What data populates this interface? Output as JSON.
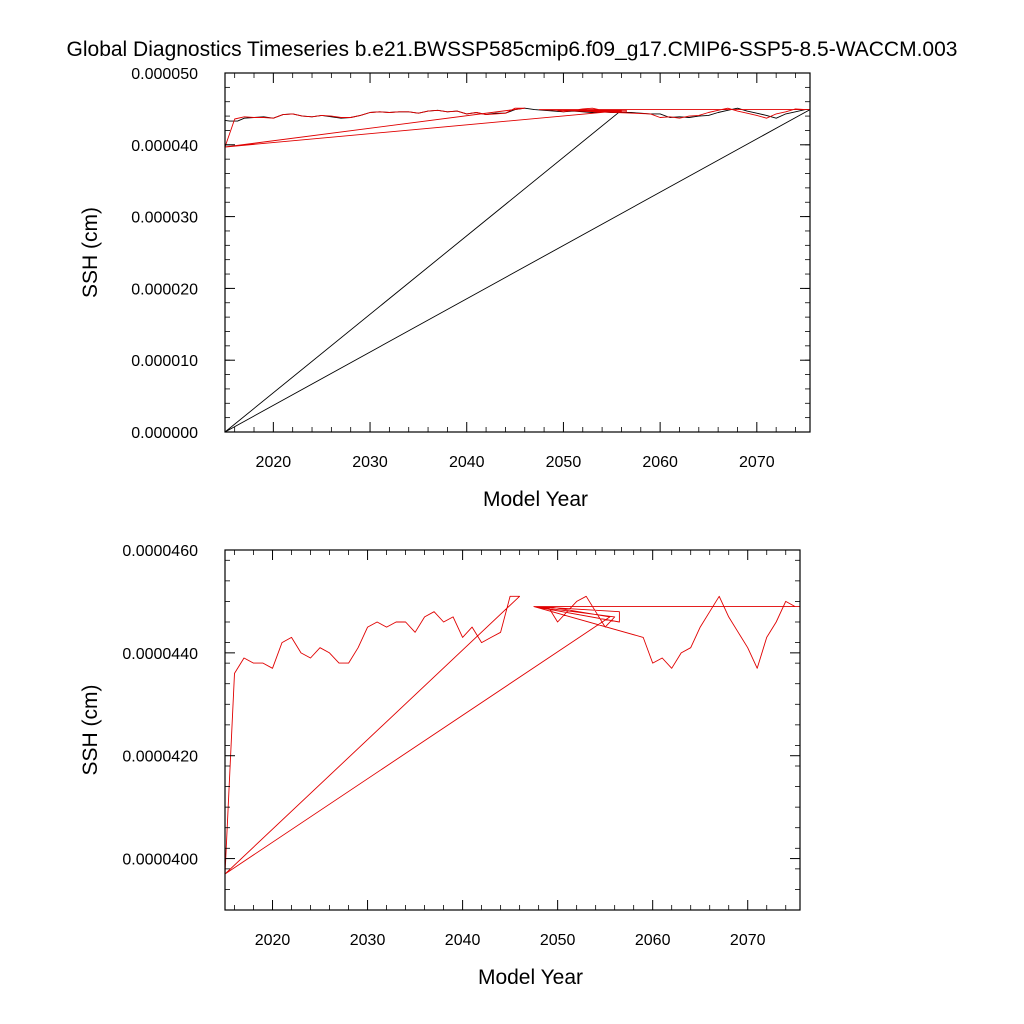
{
  "title": "Global Diagnostics Timeseries b.e21.BWSSP585cmip6.f09_g17.CMIP6-SSP5-8.5-WACCM.003",
  "colors": {
    "annual": "#e00000",
    "monthly": "#000000",
    "axis": "#000000"
  },
  "chart_data": [
    {
      "type": "line",
      "xlabel": "Model Year",
      "ylabel": "SSH (cm)",
      "xlim": [
        2015,
        2075.5
      ],
      "ylim": [
        0.0,
        5e-05
      ],
      "x_ticks": [
        2020,
        2030,
        2040,
        2050,
        2060,
        2070
      ],
      "x_tick_labels": [
        "2020",
        "2030",
        "2040",
        "2050",
        "2060",
        "2070"
      ],
      "y_ticks": [
        0.0,
        1e-05,
        2e-05,
        3e-05,
        4e-05,
        5e-05
      ],
      "y_tick_labels": [
        "0.000000",
        "0.000010",
        "0.000020",
        "0.000030",
        "0.000040",
        "0.000050"
      ],
      "series": [
        {
          "color": "black",
          "style": "monthly, noisy",
          "x": [
            2015.0,
            2015.5,
            2016.3,
            2017.0,
            2018.0,
            2019.0,
            2020.0,
            2021.0,
            2022.0,
            2023.0,
            2024.0,
            2025.0,
            2026.0,
            2027.0,
            2028.0,
            2029.0,
            2030.0,
            2031.0,
            2032.0,
            2033.0,
            2034.0,
            2035.0,
            2036.0,
            2037.0,
            2038.0,
            2039.0,
            2040.0,
            2041.0,
            2042.0,
            2043.0,
            2044.0,
            2045.0,
            2046.0,
            2047.0,
            2048.0,
            2049.0,
            2050.0,
            2051.0,
            2052.0,
            2053.0,
            2054.0,
            2055.0,
            2056.0,
            2057.0,
            2058.0,
            2059.0,
            2060.0,
            2061.0,
            2062.0,
            2063.0,
            2064.0,
            2065.0,
            2066.0,
            2067.0,
            2068.0,
            2069.0,
            2070.0,
            2071.0,
            2072.0,
            2073.0,
            2074.0,
            2075.0,
            2075.5,
            2015.0,
            2055.8
          ],
          "y": [
            4.34e-05,
            4.33e-05,
            4.33e-05,
            4.37e-05,
            4.38e-05,
            4.39e-05,
            4.37e-05,
            4.42e-05,
            4.43e-05,
            4.4e-05,
            4.39e-05,
            4.41e-05,
            4.39e-05,
            4.37e-05,
            4.38e-05,
            4.41e-05,
            4.45e-05,
            4.46e-05,
            4.45e-05,
            4.46e-05,
            4.46e-05,
            4.44e-05,
            4.47e-05,
            4.48e-05,
            4.46e-05,
            4.47e-05,
            4.43e-05,
            4.45e-05,
            4.42e-05,
            4.44e-05,
            4.44e-05,
            4.49e-05,
            4.51e-05,
            4.49e-05,
            4.48e-05,
            4.47e-05,
            4.46e-05,
            4.47e-05,
            4.46e-05,
            4.45e-05,
            4.46e-05,
            4.45e-05,
            4.45e-05,
            4.45e-05,
            4.44e-05,
            4.43e-05,
            4.43e-05,
            4.38e-05,
            4.39e-05,
            4.38e-05,
            4.4e-05,
            4.41e-05,
            4.45e-05,
            4.48e-05,
            4.51e-05,
            4.47e-05,
            4.44e-05,
            4.41e-05,
            4.37e-05,
            4.43e-05,
            4.46e-05,
            4.49e-05,
            4.49e-05,
            0.0,
            4.46e-05
          ]
        },
        {
          "color": "red",
          "style": "annual mean",
          "x": [
            2015.0,
            2016.0,
            2017.0,
            2018.0,
            2019.0,
            2020.0,
            2021.0,
            2022.0,
            2023.0,
            2024.0,
            2025.0,
            2026.0,
            2027.0,
            2028.0,
            2029.0,
            2030.0,
            2031.0,
            2032.0,
            2033.0,
            2034.0,
            2035.0,
            2036.0,
            2037.0,
            2038.0,
            2039.0,
            2040.0,
            2041.0,
            2042.0,
            2043.0,
            2044.0,
            2045.0,
            2046.0,
            2015.0,
            2055.5,
            2049.0,
            2050.0,
            2051.0,
            2052.0,
            2053.0,
            2054.0,
            2055.0,
            2056.0,
            2047.5,
            2056.5,
            2056.5,
            2047.5,
            2059.0,
            2060.0,
            2061.0,
            2062.0,
            2063.0,
            2064.0,
            2065.0,
            2066.0,
            2067.0,
            2068.0,
            2069.0,
            2070.0,
            2071.0,
            2072.0,
            2073.0,
            2074.0,
            2075.0,
            2047.5,
            2075.5
          ],
          "y": [
            3.97e-05,
            4.36e-05,
            4.39e-05,
            4.38e-05,
            4.38e-05,
            4.37e-05,
            4.42e-05,
            4.43e-05,
            4.4e-05,
            4.39e-05,
            4.41e-05,
            4.4e-05,
            4.38e-05,
            4.38e-05,
            4.41e-05,
            4.45e-05,
            4.46e-05,
            4.45e-05,
            4.46e-05,
            4.46e-05,
            4.44e-05,
            4.47e-05,
            4.48e-05,
            4.46e-05,
            4.47e-05,
            4.43e-05,
            4.45e-05,
            4.42e-05,
            4.43e-05,
            4.44e-05,
            4.51e-05,
            4.51e-05,
            3.97e-05,
            4.47e-05,
            4.49e-05,
            4.46e-05,
            4.48e-05,
            4.5e-05,
            4.51e-05,
            4.48e-05,
            4.45e-05,
            4.47e-05,
            4.49e-05,
            4.46e-05,
            4.48e-05,
            4.49e-05,
            4.43e-05,
            4.38e-05,
            4.39e-05,
            4.37e-05,
            4.4e-05,
            4.41e-05,
            4.45e-05,
            4.48e-05,
            4.51e-05,
            4.47e-05,
            4.44e-05,
            4.41e-05,
            4.37e-05,
            4.43e-05,
            4.46e-05,
            4.5e-05,
            4.49e-05,
            4.49e-05,
            4.49e-05
          ]
        }
      ]
    },
    {
      "type": "line",
      "xlabel": "Model Year",
      "ylabel": "SSH (cm)",
      "xlim": [
        2015,
        2075.5
      ],
      "ylim": [
        3.9e-05,
        4.6e-05
      ],
      "x_ticks": [
        2020,
        2030,
        2040,
        2050,
        2060,
        2070
      ],
      "x_tick_labels": [
        "2020",
        "2030",
        "2040",
        "2050",
        "2060",
        "2070"
      ],
      "y_ticks": [
        4e-05,
        4.2e-05,
        4.4e-05,
        4.6e-05
      ],
      "y_tick_labels": [
        "0.0000400",
        "0.0000420",
        "0.0000440",
        "0.0000460"
      ],
      "series": [
        {
          "color": "red",
          "style": "annual mean",
          "x": [
            2015.0,
            2016.0,
            2017.0,
            2018.0,
            2019.0,
            2020.0,
            2021.0,
            2022.0,
            2023.0,
            2024.0,
            2025.0,
            2026.0,
            2027.0,
            2028.0,
            2029.0,
            2030.0,
            2031.0,
            2032.0,
            2033.0,
            2034.0,
            2035.0,
            2036.0,
            2037.0,
            2038.0,
            2039.0,
            2040.0,
            2041.0,
            2042.0,
            2043.0,
            2044.0,
            2045.0,
            2046.0,
            2015.0,
            2055.5,
            2049.0,
            2050.0,
            2051.0,
            2052.0,
            2053.0,
            2054.0,
            2055.0,
            2056.0,
            2047.5,
            2056.5,
            2056.5,
            2047.5,
            2059.0,
            2060.0,
            2061.0,
            2062.0,
            2063.0,
            2064.0,
            2065.0,
            2066.0,
            2067.0,
            2068.0,
            2069.0,
            2070.0,
            2071.0,
            2072.0,
            2073.0,
            2074.0,
            2075.0,
            2047.5,
            2075.5
          ],
          "y": [
            3.97e-05,
            4.36e-05,
            4.39e-05,
            4.38e-05,
            4.38e-05,
            4.37e-05,
            4.42e-05,
            4.43e-05,
            4.4e-05,
            4.39e-05,
            4.41e-05,
            4.4e-05,
            4.38e-05,
            4.38e-05,
            4.41e-05,
            4.45e-05,
            4.46e-05,
            4.45e-05,
            4.46e-05,
            4.46e-05,
            4.44e-05,
            4.47e-05,
            4.48e-05,
            4.46e-05,
            4.47e-05,
            4.43e-05,
            4.45e-05,
            4.42e-05,
            4.43e-05,
            4.44e-05,
            4.51e-05,
            4.51e-05,
            3.97e-05,
            4.47e-05,
            4.49e-05,
            4.46e-05,
            4.48e-05,
            4.5e-05,
            4.51e-05,
            4.48e-05,
            4.45e-05,
            4.47e-05,
            4.49e-05,
            4.46e-05,
            4.48e-05,
            4.49e-05,
            4.43e-05,
            4.38e-05,
            4.39e-05,
            4.37e-05,
            4.4e-05,
            4.41e-05,
            4.45e-05,
            4.48e-05,
            4.51e-05,
            4.47e-05,
            4.44e-05,
            4.41e-05,
            4.37e-05,
            4.43e-05,
            4.46e-05,
            4.5e-05,
            4.49e-05,
            4.49e-05,
            4.49e-05
          ]
        }
      ]
    }
  ]
}
